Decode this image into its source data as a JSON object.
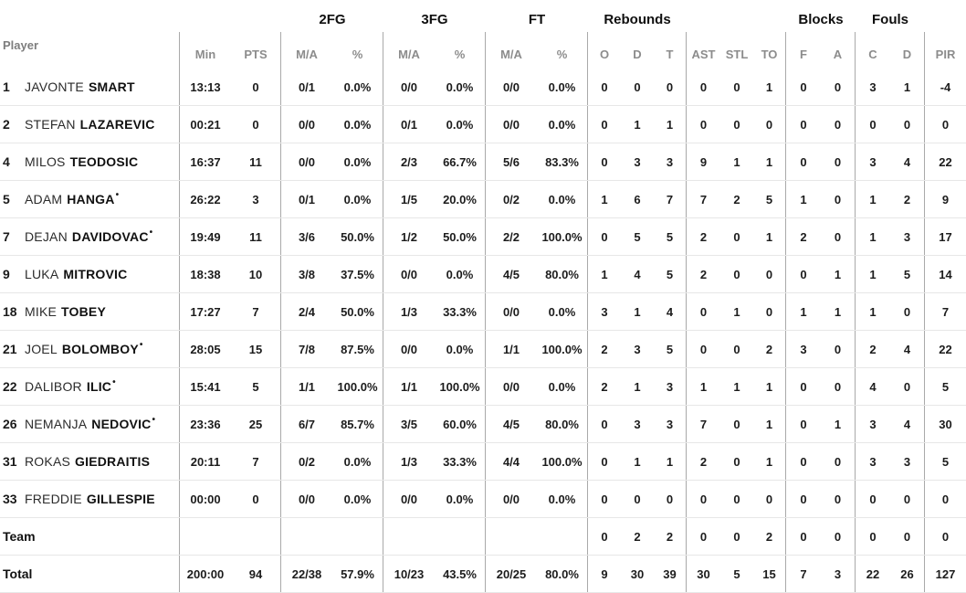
{
  "colors": {
    "background": "#ffffff",
    "text": "#1a1a1a",
    "muted_header": "#8c8c8c",
    "group_separator": "#a9a9a9",
    "row_divider": "#e7e7e7"
  },
  "table": {
    "player_col_header": "Player",
    "group_headers": {
      "fg2": "2FG",
      "fg3": "3FG",
      "ft": "FT",
      "rebounds": "Rebounds",
      "blocks": "Blocks",
      "fouls": "Fouls"
    },
    "sub_headers": {
      "min": "Min",
      "pts": "PTS",
      "ma2": "M/A",
      "pct2": "%",
      "ma3": "M/A",
      "pct3": "%",
      "maft": "M/A",
      "pctft": "%",
      "o": "O",
      "d": "D",
      "t": "T",
      "ast": "AST",
      "stl": "STL",
      "to": "TO",
      "f": "F",
      "a": "A",
      "c": "C",
      "dd": "D",
      "pir": "PIR"
    },
    "rows": [
      {
        "num": "1",
        "first": "JAVONTE",
        "last": "SMART",
        "star": "",
        "min": "13:13",
        "pts": "0",
        "fg2_ma": "0/1",
        "fg2_pct": "0.0%",
        "fg3_ma": "0/0",
        "fg3_pct": "0.0%",
        "ft_ma": "0/0",
        "ft_pct": "0.0%",
        "reb_o": "0",
        "reb_d": "0",
        "reb_t": "0",
        "ast": "0",
        "stl": "0",
        "to": "1",
        "blk_f": "0",
        "blk_a": "0",
        "foul_c": "3",
        "foul_d": "1",
        "pir": "-4"
      },
      {
        "num": "2",
        "first": "STEFAN",
        "last": "LAZAREVIC",
        "star": "",
        "min": "00:21",
        "pts": "0",
        "fg2_ma": "0/0",
        "fg2_pct": "0.0%",
        "fg3_ma": "0/1",
        "fg3_pct": "0.0%",
        "ft_ma": "0/0",
        "ft_pct": "0.0%",
        "reb_o": "0",
        "reb_d": "1",
        "reb_t": "1",
        "ast": "0",
        "stl": "0",
        "to": "0",
        "blk_f": "0",
        "blk_a": "0",
        "foul_c": "0",
        "foul_d": "0",
        "pir": "0"
      },
      {
        "num": "4",
        "first": "MILOS",
        "last": "TEODOSIC",
        "star": "",
        "min": "16:37",
        "pts": "11",
        "fg2_ma": "0/0",
        "fg2_pct": "0.0%",
        "fg3_ma": "2/3",
        "fg3_pct": "66.7%",
        "ft_ma": "5/6",
        "ft_pct": "83.3%",
        "reb_o": "0",
        "reb_d": "3",
        "reb_t": "3",
        "ast": "9",
        "stl": "1",
        "to": "1",
        "blk_f": "0",
        "blk_a": "0",
        "foul_c": "3",
        "foul_d": "4",
        "pir": "22"
      },
      {
        "num": "5",
        "first": "ADAM",
        "last": "HANGA",
        "star": "•",
        "min": "26:22",
        "pts": "3",
        "fg2_ma": "0/1",
        "fg2_pct": "0.0%",
        "fg3_ma": "1/5",
        "fg3_pct": "20.0%",
        "ft_ma": "0/2",
        "ft_pct": "0.0%",
        "reb_o": "1",
        "reb_d": "6",
        "reb_t": "7",
        "ast": "7",
        "stl": "2",
        "to": "5",
        "blk_f": "1",
        "blk_a": "0",
        "foul_c": "1",
        "foul_d": "2",
        "pir": "9"
      },
      {
        "num": "7",
        "first": "DEJAN",
        "last": "DAVIDOVAC",
        "star": "•",
        "min": "19:49",
        "pts": "11",
        "fg2_ma": "3/6",
        "fg2_pct": "50.0%",
        "fg3_ma": "1/2",
        "fg3_pct": "50.0%",
        "ft_ma": "2/2",
        "ft_pct": "100.0%",
        "reb_o": "0",
        "reb_d": "5",
        "reb_t": "5",
        "ast": "2",
        "stl": "0",
        "to": "1",
        "blk_f": "2",
        "blk_a": "0",
        "foul_c": "1",
        "foul_d": "3",
        "pir": "17"
      },
      {
        "num": "9",
        "first": "LUKA",
        "last": "MITROVIC",
        "star": "",
        "min": "18:38",
        "pts": "10",
        "fg2_ma": "3/8",
        "fg2_pct": "37.5%",
        "fg3_ma": "0/0",
        "fg3_pct": "0.0%",
        "ft_ma": "4/5",
        "ft_pct": "80.0%",
        "reb_o": "1",
        "reb_d": "4",
        "reb_t": "5",
        "ast": "2",
        "stl": "0",
        "to": "0",
        "blk_f": "0",
        "blk_a": "1",
        "foul_c": "1",
        "foul_d": "5",
        "pir": "14"
      },
      {
        "num": "18",
        "first": "MIKE",
        "last": "TOBEY",
        "star": "",
        "min": "17:27",
        "pts": "7",
        "fg2_ma": "2/4",
        "fg2_pct": "50.0%",
        "fg3_ma": "1/3",
        "fg3_pct": "33.3%",
        "ft_ma": "0/0",
        "ft_pct": "0.0%",
        "reb_o": "3",
        "reb_d": "1",
        "reb_t": "4",
        "ast": "0",
        "stl": "1",
        "to": "0",
        "blk_f": "1",
        "blk_a": "1",
        "foul_c": "1",
        "foul_d": "0",
        "pir": "7"
      },
      {
        "num": "21",
        "first": "JOEL",
        "last": "BOLOMBOY",
        "star": "•",
        "min": "28:05",
        "pts": "15",
        "fg2_ma": "7/8",
        "fg2_pct": "87.5%",
        "fg3_ma": "0/0",
        "fg3_pct": "0.0%",
        "ft_ma": "1/1",
        "ft_pct": "100.0%",
        "reb_o": "2",
        "reb_d": "3",
        "reb_t": "5",
        "ast": "0",
        "stl": "0",
        "to": "2",
        "blk_f": "3",
        "blk_a": "0",
        "foul_c": "2",
        "foul_d": "4",
        "pir": "22"
      },
      {
        "num": "22",
        "first": "DALIBOR",
        "last": "ILIC",
        "star": "•",
        "min": "15:41",
        "pts": "5",
        "fg2_ma": "1/1",
        "fg2_pct": "100.0%",
        "fg3_ma": "1/1",
        "fg3_pct": "100.0%",
        "ft_ma": "0/0",
        "ft_pct": "0.0%",
        "reb_o": "2",
        "reb_d": "1",
        "reb_t": "3",
        "ast": "1",
        "stl": "1",
        "to": "1",
        "blk_f": "0",
        "blk_a": "0",
        "foul_c": "4",
        "foul_d": "0",
        "pir": "5"
      },
      {
        "num": "26",
        "first": "NEMANJA",
        "last": "NEDOVIC",
        "star": "•",
        "min": "23:36",
        "pts": "25",
        "fg2_ma": "6/7",
        "fg2_pct": "85.7%",
        "fg3_ma": "3/5",
        "fg3_pct": "60.0%",
        "ft_ma": "4/5",
        "ft_pct": "80.0%",
        "reb_o": "0",
        "reb_d": "3",
        "reb_t": "3",
        "ast": "7",
        "stl": "0",
        "to": "1",
        "blk_f": "0",
        "blk_a": "1",
        "foul_c": "3",
        "foul_d": "4",
        "pir": "30"
      },
      {
        "num": "31",
        "first": "ROKAS",
        "last": "GIEDRAITIS",
        "star": "",
        "min": "20:11",
        "pts": "7",
        "fg2_ma": "0/2",
        "fg2_pct": "0.0%",
        "fg3_ma": "1/3",
        "fg3_pct": "33.3%",
        "ft_ma": "4/4",
        "ft_pct": "100.0%",
        "reb_o": "0",
        "reb_d": "1",
        "reb_t": "1",
        "ast": "2",
        "stl": "0",
        "to": "1",
        "blk_f": "0",
        "blk_a": "0",
        "foul_c": "3",
        "foul_d": "3",
        "pir": "5"
      },
      {
        "num": "33",
        "first": "FREDDIE",
        "last": "GILLESPIE",
        "star": "",
        "min": "00:00",
        "pts": "0",
        "fg2_ma": "0/0",
        "fg2_pct": "0.0%",
        "fg3_ma": "0/0",
        "fg3_pct": "0.0%",
        "ft_ma": "0/0",
        "ft_pct": "0.0%",
        "reb_o": "0",
        "reb_d": "0",
        "reb_t": "0",
        "ast": "0",
        "stl": "0",
        "to": "0",
        "blk_f": "0",
        "blk_a": "0",
        "foul_c": "0",
        "foul_d": "0",
        "pir": "0"
      }
    ],
    "team_row": {
      "label": "Team",
      "reb_o": "0",
      "reb_d": "2",
      "reb_t": "2",
      "ast": "0",
      "stl": "0",
      "to": "2",
      "blk_f": "0",
      "blk_a": "0",
      "foul_c": "0",
      "foul_d": "0",
      "pir": "0"
    },
    "total_row": {
      "label": "Total",
      "min": "200:00",
      "pts": "94",
      "fg2_ma": "22/38",
      "fg2_pct": "57.9%",
      "fg3_ma": "10/23",
      "fg3_pct": "43.5%",
      "ft_ma": "20/25",
      "ft_pct": "80.0%",
      "reb_o": "9",
      "reb_d": "30",
      "reb_t": "39",
      "ast": "30",
      "stl": "5",
      "to": "15",
      "blk_f": "7",
      "blk_a": "3",
      "foul_c": "22",
      "foul_d": "26",
      "pir": "127"
    }
  }
}
